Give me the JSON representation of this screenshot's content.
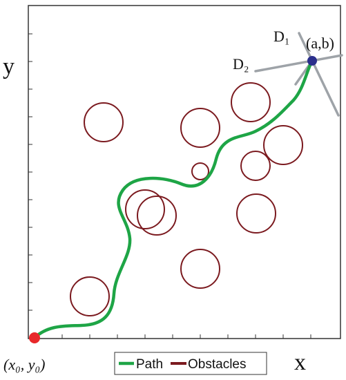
{
  "labels": {
    "y_axis": "y",
    "x_axis": "x",
    "start_point": "(x₀, y₀)",
    "goal_point": "(a,b)",
    "direction_1": "D₁",
    "direction_2": "D₂"
  },
  "legend": {
    "path_label": "Path",
    "obstacles_label": "Obstacles"
  },
  "colors": {
    "path": "#1ea546",
    "obstacle": "#7b1a1f",
    "start": "#e8282a",
    "goal": "#2b2f8c",
    "direction_lines": "#9ea3a8",
    "frame": "#333333"
  }
}
